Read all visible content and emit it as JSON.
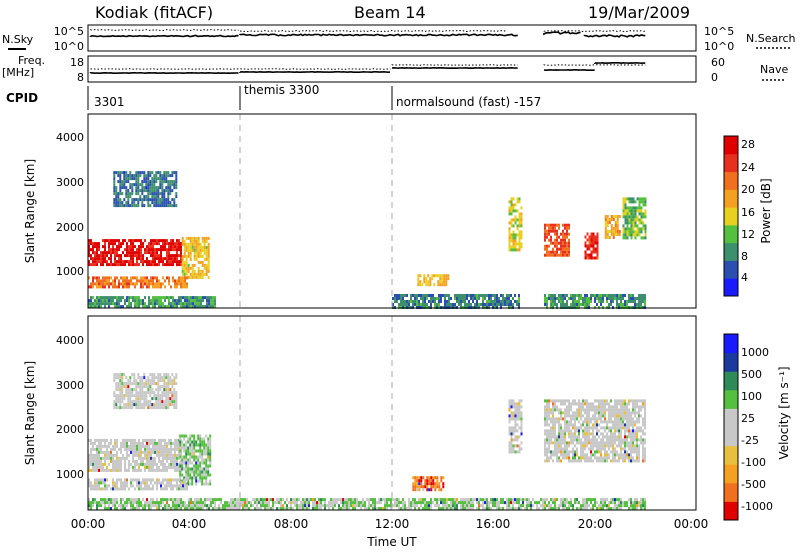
{
  "header": {
    "station": "Kodiak (fitACF)",
    "beam": "Beam 14",
    "date": "19/Mar/2009"
  },
  "top_panel": {
    "left_label": "N.Sky",
    "left_ticks": [
      "10^5",
      "10^0"
    ],
    "right_label": "N.Search",
    "right_ticks": [
      "10^5",
      "10^0"
    ]
  },
  "freq_panel": {
    "left_label_1": "Freq.",
    "left_label_2": "[MHz]",
    "left_ticks": [
      "18",
      "8"
    ],
    "right_label": "Nave",
    "right_ticks": [
      "60",
      "0"
    ]
  },
  "cpid": {
    "label": "CPID",
    "segments": [
      {
        "start_hour": 0.0,
        "label": "3301"
      },
      {
        "start_hour": 6.0,
        "label": "themis 3300"
      },
      {
        "start_hour": 12.0,
        "label": "normalsound (fast) -157"
      }
    ]
  },
  "colors": {
    "power_scale": [
      "#1a1aff",
      "#2b4fb0",
      "#3d8f6e",
      "#55c040",
      "#e8d020",
      "#f5a020",
      "#f07020",
      "#e83020",
      "#e00000"
    ],
    "velocity_scale": [
      "#e00000",
      "#f07020",
      "#f5a020",
      "#e8c040",
      "#c8c8c8",
      "#c8c8c8",
      "#55c040",
      "#2e8b57",
      "#1a3aa0",
      "#1a1aff"
    ],
    "ground_scatter": "#c0c0c0"
  },
  "chart_data": [
    {
      "type": "heatmap",
      "panel": "power",
      "x_label": "Time UT",
      "ylabel": "Slant Range [km]",
      "xlim": [
        0,
        24
      ],
      "ylim": [
        180,
        4600
      ],
      "x_ticks": [
        "00:00",
        "04:00",
        "08:00",
        "12:00",
        "16:00",
        "20:00",
        "00:00"
      ],
      "y_ticks": [
        1000,
        2000,
        3000,
        4000
      ],
      "colorbar_label": "Power [dB]",
      "colorbar_ticks": [
        4,
        8,
        12,
        16,
        20,
        24,
        28
      ],
      "regions": [
        {
          "t": [
            0.0,
            3.7
          ],
          "r": [
            1150,
            1750
          ],
          "level": 0.92
        },
        {
          "t": [
            3.7,
            4.8
          ],
          "r": [
            900,
            1800
          ],
          "level": 0.55
        },
        {
          "t": [
            0.0,
            3.9
          ],
          "r": [
            650,
            900
          ],
          "level": 0.7
        },
        {
          "t": [
            1.0,
            3.5
          ],
          "r": [
            2500,
            3300
          ],
          "level": 0.22
        },
        {
          "t": [
            0.0,
            5.0
          ],
          "r": [
            200,
            450
          ],
          "level": 0.3
        },
        {
          "t": [
            13.0,
            14.2
          ],
          "r": [
            700,
            950
          ],
          "level": 0.55
        },
        {
          "t": [
            12.0,
            17.0
          ],
          "r": [
            200,
            500
          ],
          "level": 0.25
        },
        {
          "t": [
            16.6,
            17.1
          ],
          "r": [
            1500,
            2700
          ],
          "level": 0.5
        },
        {
          "t": [
            18.0,
            19.0
          ],
          "r": [
            1400,
            2100
          ],
          "level": 0.78
        },
        {
          "t": [
            19.6,
            20.1
          ],
          "r": [
            1300,
            1900
          ],
          "level": 0.85
        },
        {
          "t": [
            20.4,
            21.0
          ],
          "r": [
            1800,
            2300
          ],
          "level": 0.6
        },
        {
          "t": [
            21.1,
            22.0
          ],
          "r": [
            1800,
            2700
          ],
          "level": 0.4
        },
        {
          "t": [
            18.0,
            22.0
          ],
          "r": [
            200,
            500
          ],
          "level": 0.3
        }
      ]
    },
    {
      "type": "heatmap",
      "panel": "velocity",
      "x_label": "Time UT",
      "ylabel": "Slant Range [km]",
      "xlim": [
        0,
        24
      ],
      "ylim": [
        180,
        4600
      ],
      "x_ticks": [
        "00:00",
        "04:00",
        "08:00",
        "12:00",
        "16:00",
        "20:00",
        "00:00"
      ],
      "y_ticks": [
        1000,
        2000,
        3000,
        4000
      ],
      "colorbar_label": "Velocity [m s⁻¹]",
      "colorbar_ticks": [
        -1000,
        -500,
        -100,
        -25,
        25,
        100,
        500,
        1000
      ],
      "regions": [
        {
          "t": [
            0.0,
            3.7
          ],
          "r": [
            1100,
            1800
          ],
          "level": 0.5
        },
        {
          "t": [
            3.6,
            4.8
          ],
          "r": [
            750,
            1900
          ],
          "level": 0.62
        },
        {
          "t": [
            0.0,
            3.9
          ],
          "r": [
            650,
            900
          ],
          "level": 0.5
        },
        {
          "t": [
            1.0,
            3.5
          ],
          "r": [
            2500,
            3300
          ],
          "level": 0.5
        },
        {
          "t": [
            12.8,
            14.0
          ],
          "r": [
            650,
            950
          ],
          "level": 0.15
        },
        {
          "t": [
            16.6,
            17.1
          ],
          "r": [
            1500,
            2700
          ],
          "level": 0.5
        },
        {
          "t": [
            18.0,
            22.0
          ],
          "r": [
            1300,
            2700
          ],
          "level": 0.5
        },
        {
          "t": [
            0.0,
            22.0
          ],
          "r": [
            200,
            450
          ],
          "level": 0.6
        }
      ]
    }
  ]
}
